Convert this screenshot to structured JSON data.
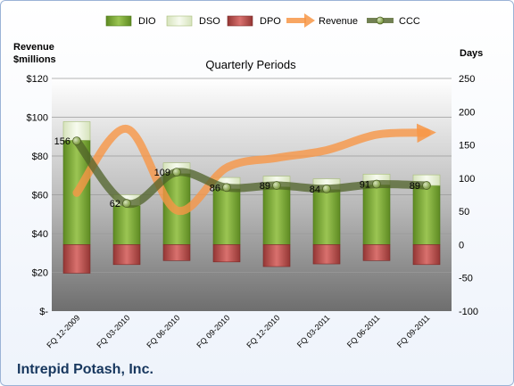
{
  "company": "Intrepid Potash, Inc.",
  "chart_data": {
    "type": "bar",
    "title": "Quarterly Periods",
    "left_axis_title": [
      "Revenue",
      "$millions"
    ],
    "right_axis_title": "Days",
    "left_ticks": [
      "$-",
      "$20",
      "$40",
      "$60",
      "$80",
      "$100",
      "$120"
    ],
    "right_ticks": [
      "-100",
      "-50",
      "0",
      "50",
      "100",
      "150",
      "200",
      "250"
    ],
    "left_range": [
      0,
      120
    ],
    "right_range": [
      -100,
      250
    ],
    "categories": [
      "FQ 12-2009",
      "FQ 03-2010",
      "FQ 06-2010",
      "FQ 09-2010",
      "FQ 12-2010",
      "FQ 03-2011",
      "FQ 06-2011",
      "FQ 09-2011"
    ],
    "legend_position": "top",
    "series": [
      {
        "name": "DIO",
        "axis": "right",
        "color": "#77a034",
        "values": [
          157,
          59,
          107,
          84,
          87,
          83,
          90,
          89
        ]
      },
      {
        "name": "DSO",
        "axis": "right",
        "color": "#eaf1dd",
        "values": [
          28,
          16,
          16,
          17,
          16,
          16,
          16,
          16
        ]
      },
      {
        "name": "DPO",
        "axis": "right",
        "color": "#c0504d",
        "values": [
          -43,
          -30,
          -24,
          -26,
          -33,
          -29,
          -24,
          -30
        ]
      },
      {
        "name": "Revenue",
        "axis": "left",
        "color": "#f79646",
        "values": [
          61,
          94,
          52,
          74,
          79,
          83,
          91,
          92
        ]
      },
      {
        "name": "CCC",
        "axis": "right",
        "color": "#4f6228",
        "values": [
          156,
          62,
          109,
          86,
          89,
          84,
          91,
          89
        ]
      }
    ],
    "ccc_labels": [
      "156",
      "62",
      "109",
      "86",
      "89",
      "84",
      "91",
      "89"
    ],
    "grid": true
  }
}
